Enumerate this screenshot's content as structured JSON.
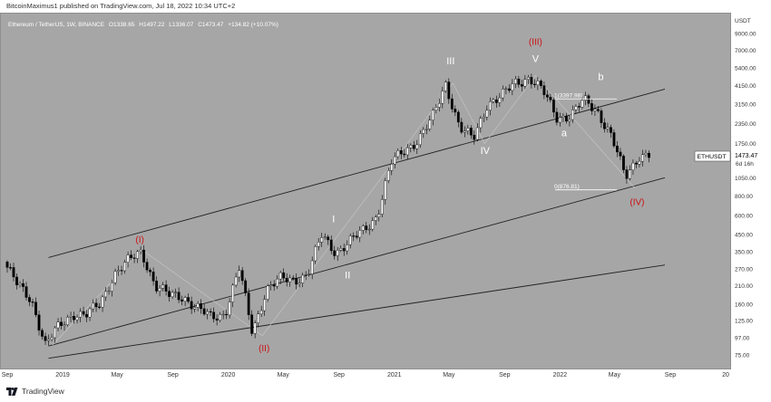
{
  "header": {
    "published_text": "BitcoinMaximus1 published on TradingView.com, Jul 18, 2022 10:34 UTC+2"
  },
  "legend": {
    "symbol": "Ethereum / TetherUS, 1W, BINANCE",
    "open": "O1338.65",
    "high": "H1497.22",
    "low": "L1336.07",
    "close": "C1473.47",
    "change": "+134.82 (+10.07%)"
  },
  "price_tag": {
    "ticker": "ETHUSDT",
    "price": "1473.47",
    "countdown": "6d 16h"
  },
  "footer": {
    "brand": "TradingView"
  },
  "colors": {
    "background": "#a6a6a7",
    "up_candle": "#ffffff",
    "down_candle": "#000000",
    "red_label": "#cc1111",
    "white_label": "#ffffff"
  },
  "chart_data": {
    "type": "candlestick",
    "symbol": "ETHUSDT",
    "interval": "1W",
    "exchange": "BINANCE",
    "y_scale": "log",
    "y_unit": "USDT",
    "y_ticks": [
      75,
      97,
      125,
      160,
      210,
      270,
      350,
      450,
      600,
      800,
      1050,
      1350,
      1750,
      2350,
      3150,
      4150,
      5400,
      7000,
      9000
    ],
    "y_tick_labels": [
      "75.00",
      "97.00",
      "125.00",
      "160.00",
      "210.00",
      "270.00",
      "350.00",
      "450.00",
      "600.00",
      "800.00",
      "1050.00",
      "1350.00",
      "1750.00",
      "2350.00",
      "3150.00",
      "4150.00",
      "5400.00",
      "7000.00",
      "9000.00"
    ],
    "x_ticks": [
      "2018-09",
      "2019-01",
      "2019-05",
      "2019-09",
      "2020-01",
      "2020-05",
      "2020-09",
      "2021-01",
      "2021-05",
      "2021-09",
      "2022-01",
      "2022-05",
      "2022-09",
      "2023-01"
    ],
    "x_tick_labels": [
      "Sep",
      "2019",
      "May",
      "Sep",
      "2020",
      "May",
      "Sep",
      "2021",
      "May",
      "Sep",
      "2022",
      "May",
      "Sep",
      "20"
    ],
    "price_path": [
      [
        "2018-09",
        300
      ],
      [
        "2018-10",
        210
      ],
      [
        "2018-11",
        170
      ],
      [
        "2018-12",
        87
      ],
      [
        "2019-01",
        115
      ],
      [
        "2019-02",
        140
      ],
      [
        "2019-03",
        135
      ],
      [
        "2019-04",
        160
      ],
      [
        "2019-05",
        250
      ],
      [
        "2019-06",
        300
      ],
      [
        "2019-07",
        350
      ],
      [
        "2019-08",
        210
      ],
      [
        "2019-09",
        180
      ],
      [
        "2019-10",
        180
      ],
      [
        "2019-11",
        150
      ],
      [
        "2019-12",
        130
      ],
      [
        "2020-01",
        140
      ],
      [
        "2020-02",
        270
      ],
      [
        "2020-03",
        105
      ],
      [
        "2020-04",
        200
      ],
      [
        "2020-05",
        230
      ],
      [
        "2020-06",
        230
      ],
      [
        "2020-07",
        250
      ],
      [
        "2020-08",
        440
      ],
      [
        "2020-09",
        350
      ],
      [
        "2020-10",
        400
      ],
      [
        "2020-11",
        480
      ],
      [
        "2020-12",
        600
      ],
      [
        "2021-01",
        1300
      ],
      [
        "2021-02",
        1600
      ],
      [
        "2021-03",
        1850
      ],
      [
        "2021-04",
        2500
      ],
      [
        "2021-05",
        4300
      ],
      [
        "2021-06",
        2200
      ],
      [
        "2021-07",
        1850
      ],
      [
        "2021-08",
        3200
      ],
      [
        "2021-09",
        3500
      ],
      [
        "2021-10",
        4300
      ],
      [
        "2021-11",
        4700
      ],
      [
        "2021-12",
        3800
      ],
      [
        "2022-01",
        2600
      ],
      [
        "2022-02",
        2650
      ],
      [
        "2022-03",
        3300
      ],
      [
        "2022-04",
        2850
      ],
      [
        "2022-05",
        1950
      ],
      [
        "2022-06",
        1050
      ],
      [
        "2022-07",
        1473.47
      ]
    ],
    "annotations": [
      {
        "text": "(I)",
        "color": "red",
        "date": "2019-06-20",
        "price": 400
      },
      {
        "text": "(II)",
        "color": "red",
        "date": "2020-03-20",
        "price": 79
      },
      {
        "text": "(III)",
        "color": "red",
        "date": "2021-11-08",
        "price": 7600
      },
      {
        "text": "(IV)",
        "color": "red",
        "date": "2022-06-20",
        "price": 700
      },
      {
        "text": "I",
        "color": "white",
        "date": "2020-08-20",
        "price": 540
      },
      {
        "text": "II",
        "color": "white",
        "date": "2020-09-20",
        "price": 235
      },
      {
        "text": "III",
        "color": "white",
        "date": "2021-05-05",
        "price": 5700
      },
      {
        "text": "IV",
        "color": "white",
        "date": "2021-07-20",
        "price": 1500
      },
      {
        "text": "V",
        "color": "white",
        "date": "2021-11-08",
        "price": 5900
      },
      {
        "text": "a",
        "color": "white",
        "date": "2022-01-10",
        "price": 1950
      },
      {
        "text": "b",
        "color": "white",
        "date": "2022-04-01",
        "price": 4500
      }
    ],
    "fib_levels": [
      {
        "label": "1(3397.98)",
        "price": 3397.98
      },
      {
        "label": "0(876.81)",
        "price": 876.81
      }
    ]
  }
}
